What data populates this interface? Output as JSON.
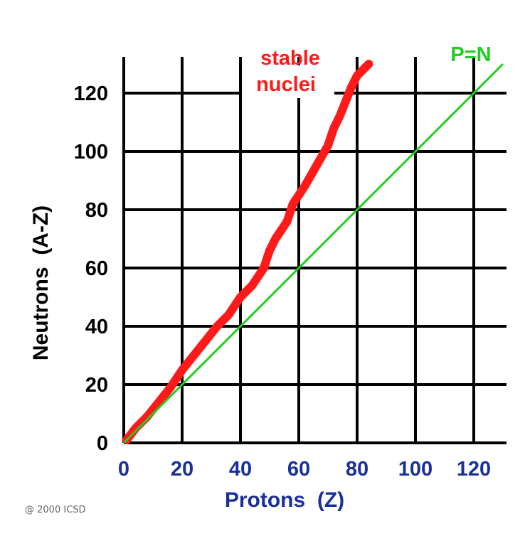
{
  "chart_data": {
    "type": "scatter",
    "title": "",
    "xlabel": "Protons  (Z)",
    "ylabel": "Neutrons  (A-Z)",
    "xlim": [
      0,
      130
    ],
    "ylim": [
      0,
      130
    ],
    "grid": true,
    "x_ticks": [
      "0",
      "20",
      "40",
      "60",
      "80",
      "100",
      "120"
    ],
    "y_ticks": [
      "0",
      "20",
      "40",
      "60",
      "80",
      "100",
      "120"
    ],
    "series": [
      {
        "name": "stable nuclei",
        "color": "#ff1a1a",
        "x": [
          1,
          4,
          8,
          12,
          16,
          20,
          24,
          28,
          32,
          36,
          40,
          44,
          48,
          50,
          52,
          56,
          58,
          62,
          66,
          70,
          72,
          74,
          76,
          78,
          80,
          82,
          84
        ],
        "y": [
          1,
          5,
          9,
          14,
          19,
          25,
          30,
          35,
          40,
          44,
          50,
          54,
          60,
          66,
          70,
          76,
          82,
          88,
          95,
          102,
          108,
          112,
          117,
          122,
          126,
          128,
          130
        ]
      },
      {
        "name": "P=N",
        "color": "#22cc22",
        "x": [
          0,
          130
        ],
        "y": [
          0,
          130
        ]
      }
    ],
    "annotations": [
      {
        "text": "stable",
        "color": "#ff1a1a"
      },
      {
        "text": "nuclei",
        "color": "#ff1a1a"
      },
      {
        "text": "P=N",
        "color": "#22cc22"
      }
    ]
  },
  "copyright": "@ 2000  ICSD",
  "colors": {
    "grid": "#000000",
    "x_tick_color": "#1a2f9c",
    "x_label_color": "#1a2f9c",
    "y_label_color": "#000000"
  }
}
